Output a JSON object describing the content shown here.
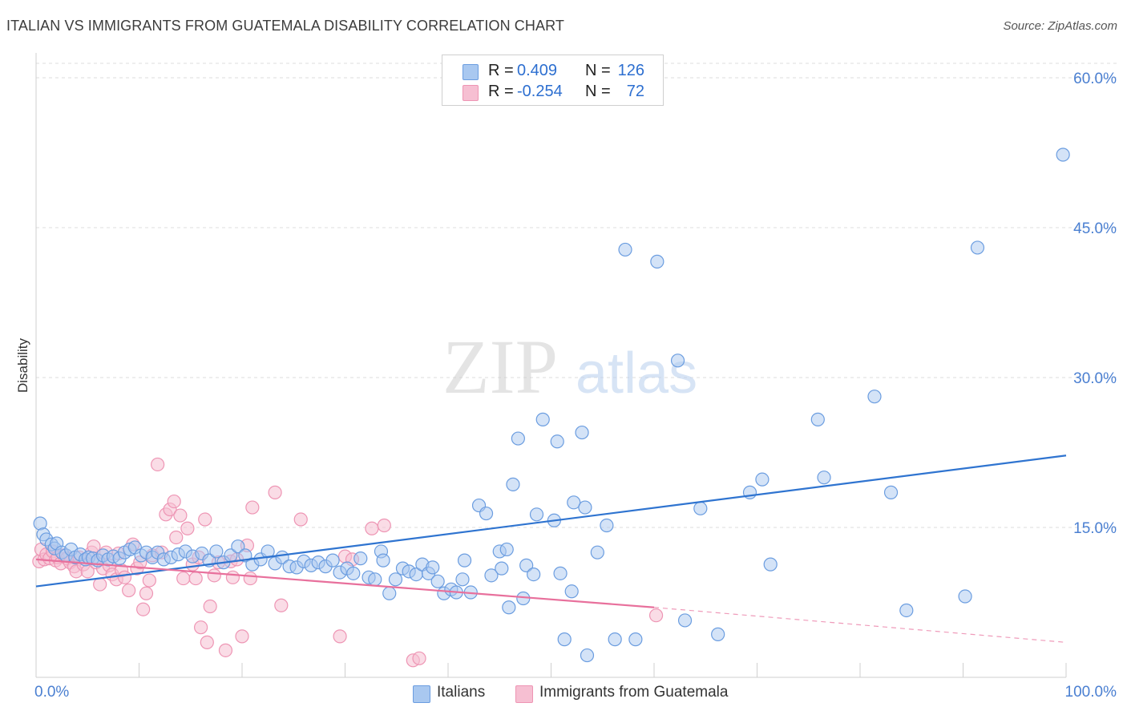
{
  "title": "ITALIAN VS IMMIGRANTS FROM GUATEMALA DISABILITY CORRELATION CHART",
  "source": "Source: ZipAtlas.com",
  "watermark": {
    "zip": "ZIP",
    "atlas": "atlas"
  },
  "legend": {
    "rows": [
      {
        "r_label": "R =",
        "r_value": "0.409",
        "n_label": "N =",
        "n_value": "126"
      },
      {
        "r_label": "R =",
        "r_value": "-0.254",
        "n_label": "N =",
        "n_value": "72"
      }
    ]
  },
  "bottom_legend": [
    "Italians",
    "Immigrants from Guatemala"
  ],
  "colors": {
    "italians_fill": "#a9c8f0",
    "italians_stroke": "#6b9de0",
    "italians_line": "#2f74d0",
    "guatemala_fill": "#f6bfd2",
    "guatemala_stroke": "#ee95b4",
    "guatemala_line": "#e8709c",
    "grid": "#dddddd",
    "tick_text": "#4a7fd1"
  },
  "chart_data": {
    "type": "scatter",
    "title": "ITALIAN VS IMMIGRANTS FROM GUATEMALA DISABILITY CORRELATION CHART",
    "xlabel": "",
    "ylabel": "Disability",
    "xlim": [
      0,
      100
    ],
    "ylim": [
      0,
      60
    ],
    "x_tick_labels": [
      "0.0%",
      "100.0%"
    ],
    "y_ticks": [
      15,
      30,
      45,
      60
    ],
    "y_tick_labels": [
      "15.0%",
      "30.0%",
      "45.0%",
      "60.0%"
    ],
    "grid": "horizontal dashed",
    "legend_position": "top-center",
    "series": [
      {
        "name": "Italians",
        "r": 0.409,
        "n": 126,
        "trend": {
          "x": [
            0,
            100
          ],
          "y": [
            9.1,
            22.2
          ]
        },
        "points": [
          [
            0.4,
            15.4
          ],
          [
            0.7,
            14.3
          ],
          [
            1.0,
            13.8
          ],
          [
            1.5,
            13.3
          ],
          [
            1.8,
            12.9
          ],
          [
            2.0,
            13.4
          ],
          [
            2.5,
            12.5
          ],
          [
            2.9,
            12.2
          ],
          [
            3.4,
            12.8
          ],
          [
            3.8,
            12.0
          ],
          [
            4.3,
            12.3
          ],
          [
            4.8,
            11.8
          ],
          [
            5.1,
            12.0
          ],
          [
            5.5,
            11.9
          ],
          [
            6.0,
            11.7
          ],
          [
            6.5,
            12.2
          ],
          [
            7.0,
            11.8
          ],
          [
            7.5,
            12.1
          ],
          [
            8.1,
            11.9
          ],
          [
            8.6,
            12.5
          ],
          [
            9.1,
            12.8
          ],
          [
            9.6,
            13.0
          ],
          [
            10.2,
            12.2
          ],
          [
            10.7,
            12.5
          ],
          [
            11.3,
            12.0
          ],
          [
            11.8,
            12.5
          ],
          [
            12.4,
            11.8
          ],
          [
            13.1,
            12.0
          ],
          [
            13.8,
            12.3
          ],
          [
            14.5,
            12.6
          ],
          [
            15.2,
            12.1
          ],
          [
            16.1,
            12.4
          ],
          [
            16.8,
            11.7
          ],
          [
            17.5,
            12.6
          ],
          [
            18.2,
            11.5
          ],
          [
            18.9,
            12.2
          ],
          [
            19.6,
            13.1
          ],
          [
            20.3,
            12.2
          ],
          [
            21.0,
            11.3
          ],
          [
            21.8,
            11.8
          ],
          [
            22.5,
            12.6
          ],
          [
            23.2,
            11.4
          ],
          [
            23.9,
            12.0
          ],
          [
            24.6,
            11.1
          ],
          [
            25.3,
            11.0
          ],
          [
            26.0,
            11.6
          ],
          [
            26.7,
            11.2
          ],
          [
            27.4,
            11.5
          ],
          [
            28.1,
            11.1
          ],
          [
            28.8,
            11.7
          ],
          [
            29.5,
            10.5
          ],
          [
            30.2,
            10.9
          ],
          [
            30.8,
            10.4
          ],
          [
            31.5,
            11.9
          ],
          [
            32.3,
            10.0
          ],
          [
            32.9,
            9.8
          ],
          [
            33.5,
            12.6
          ],
          [
            33.7,
            11.7
          ],
          [
            34.3,
            8.4
          ],
          [
            34.9,
            9.8
          ],
          [
            35.6,
            10.9
          ],
          [
            36.2,
            10.6
          ],
          [
            36.9,
            10.3
          ],
          [
            37.5,
            11.3
          ],
          [
            38.1,
            10.4
          ],
          [
            38.5,
            11.0
          ],
          [
            39.0,
            9.6
          ],
          [
            39.6,
            8.4
          ],
          [
            40.3,
            8.8
          ],
          [
            40.8,
            8.5
          ],
          [
            41.4,
            9.8
          ],
          [
            41.6,
            11.7
          ],
          [
            42.2,
            8.5
          ],
          [
            43.0,
            17.2
          ],
          [
            43.7,
            16.4
          ],
          [
            44.2,
            10.2
          ],
          [
            45.0,
            12.6
          ],
          [
            45.2,
            10.9
          ],
          [
            45.7,
            12.8
          ],
          [
            45.9,
            7.0
          ],
          [
            46.3,
            19.3
          ],
          [
            46.8,
            23.9
          ],
          [
            47.3,
            7.9
          ],
          [
            47.6,
            11.2
          ],
          [
            48.3,
            10.3
          ],
          [
            48.6,
            16.3
          ],
          [
            49.2,
            25.8
          ],
          [
            50.3,
            15.7
          ],
          [
            50.6,
            23.6
          ],
          [
            50.9,
            10.4
          ],
          [
            51.3,
            3.8
          ],
          [
            52.0,
            8.6
          ],
          [
            52.2,
            17.5
          ],
          [
            53.0,
            24.5
          ],
          [
            53.3,
            17.0
          ],
          [
            53.5,
            2.2
          ],
          [
            54.5,
            12.5
          ],
          [
            55.4,
            15.2
          ],
          [
            56.2,
            3.8
          ],
          [
            57.2,
            42.8
          ],
          [
            58.2,
            3.8
          ],
          [
            60.3,
            41.6
          ],
          [
            62.3,
            31.7
          ],
          [
            63.0,
            5.7
          ],
          [
            64.5,
            16.9
          ],
          [
            66.2,
            4.3
          ],
          [
            69.3,
            18.5
          ],
          [
            70.5,
            19.8
          ],
          [
            71.3,
            11.3
          ],
          [
            75.9,
            25.8
          ],
          [
            76.5,
            20.0
          ],
          [
            81.4,
            28.1
          ],
          [
            83.0,
            18.5
          ],
          [
            84.5,
            6.7
          ],
          [
            90.2,
            8.1
          ],
          [
            91.4,
            43.0
          ],
          [
            99.7,
            52.3
          ]
        ]
      },
      {
        "name": "Immigrants from Guatemala",
        "r": -0.254,
        "n": 72,
        "trend": {
          "x": [
            0,
            60
          ],
          "y": [
            11.8,
            7.0
          ]
        },
        "trend_dashed": {
          "x": [
            60,
            100
          ],
          "y": [
            7.0,
            3.5
          ]
        },
        "points": [
          [
            0.3,
            11.6
          ],
          [
            0.5,
            12.8
          ],
          [
            0.8,
            11.8
          ],
          [
            1.0,
            12.3
          ],
          [
            1.3,
            11.9
          ],
          [
            1.6,
            12.6
          ],
          [
            1.9,
            11.7
          ],
          [
            2.1,
            12.0
          ],
          [
            2.4,
            11.4
          ],
          [
            2.7,
            12.2
          ],
          [
            3.0,
            11.9
          ],
          [
            3.3,
            11.5
          ],
          [
            3.7,
            11.1
          ],
          [
            3.9,
            10.6
          ],
          [
            4.2,
            12.0
          ],
          [
            4.6,
            11.3
          ],
          [
            5.0,
            10.6
          ],
          [
            5.4,
            12.5
          ],
          [
            5.6,
            13.1
          ],
          [
            5.8,
            11.5
          ],
          [
            6.2,
            9.3
          ],
          [
            6.5,
            10.9
          ],
          [
            6.8,
            12.5
          ],
          [
            7.1,
            11.2
          ],
          [
            7.4,
            10.3
          ],
          [
            7.8,
            9.8
          ],
          [
            8.0,
            12.4
          ],
          [
            8.3,
            10.7
          ],
          [
            8.6,
            10.0
          ],
          [
            9.0,
            8.7
          ],
          [
            9.4,
            13.3
          ],
          [
            9.8,
            10.9
          ],
          [
            10.1,
            11.5
          ],
          [
            10.4,
            6.8
          ],
          [
            10.7,
            8.4
          ],
          [
            11.0,
            9.7
          ],
          [
            11.3,
            12.2
          ],
          [
            11.8,
            21.3
          ],
          [
            12.2,
            12.5
          ],
          [
            12.6,
            16.3
          ],
          [
            13.0,
            16.8
          ],
          [
            13.4,
            17.6
          ],
          [
            13.6,
            14.0
          ],
          [
            14.0,
            16.2
          ],
          [
            14.3,
            9.9
          ],
          [
            14.7,
            14.9
          ],
          [
            15.2,
            11.3
          ],
          [
            15.5,
            9.9
          ],
          [
            15.8,
            12.0
          ],
          [
            16.0,
            5.0
          ],
          [
            16.4,
            15.8
          ],
          [
            16.6,
            3.5
          ],
          [
            16.9,
            7.1
          ],
          [
            17.3,
            10.2
          ],
          [
            17.7,
            11.5
          ],
          [
            18.4,
            2.7
          ],
          [
            18.9,
            11.6
          ],
          [
            19.1,
            10.0
          ],
          [
            19.5,
            11.8
          ],
          [
            20.0,
            4.1
          ],
          [
            20.5,
            13.2
          ],
          [
            20.8,
            9.9
          ],
          [
            21.0,
            17.0
          ],
          [
            23.2,
            18.5
          ],
          [
            23.8,
            7.2
          ],
          [
            25.7,
            15.8
          ],
          [
            29.5,
            4.1
          ],
          [
            30.0,
            12.1
          ],
          [
            30.7,
            11.8
          ],
          [
            32.6,
            14.9
          ],
          [
            33.8,
            15.2
          ],
          [
            36.6,
            1.7
          ],
          [
            37.2,
            1.9
          ],
          [
            60.2,
            6.2
          ]
        ]
      }
    ]
  }
}
